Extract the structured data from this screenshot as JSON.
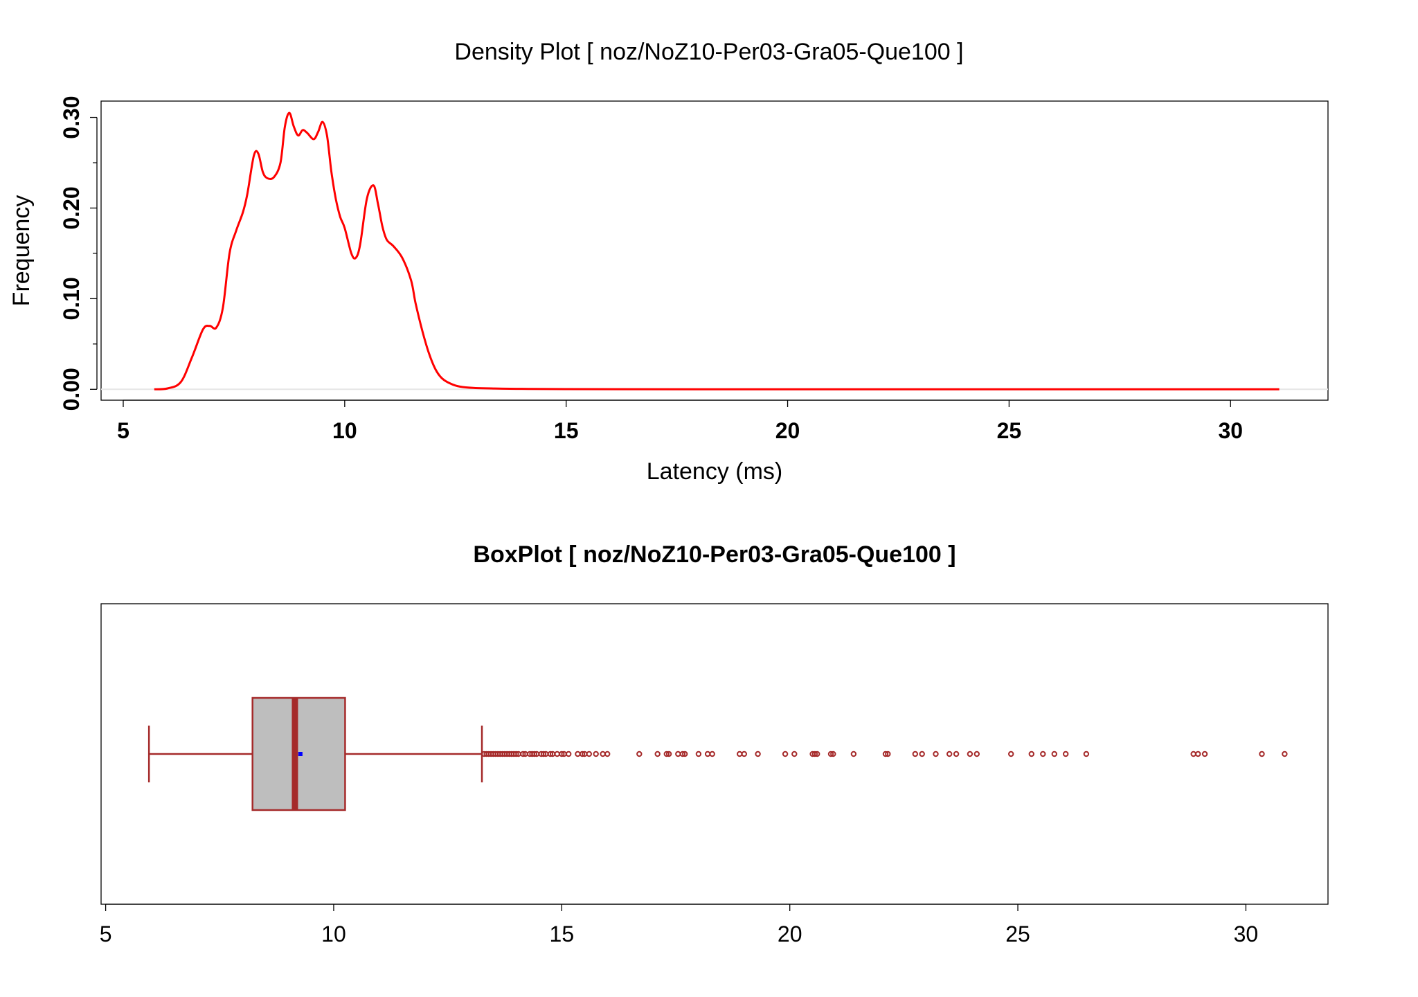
{
  "colors": {
    "density_line": "#ff0000",
    "box_fill": "#bebebe",
    "box_stroke": "#a52a2a",
    "mean_marker": "#0000ff",
    "frame": "#000000",
    "grid": "#e6e6e6"
  },
  "chart_data": [
    {
      "type": "line",
      "title": "Density Plot [ noz/NoZ10-Per03-Gra05-Que100 ]",
      "xlabel": "Latency (ms)",
      "ylabel": "Frequency",
      "xlim": [
        4.5,
        32.2
      ],
      "ylim": [
        -0.012,
        0.318
      ],
      "x_ticks": [
        5,
        10,
        15,
        20,
        25,
        30
      ],
      "x_tick_labels": [
        "5",
        "10",
        "15",
        "20",
        "25",
        "30"
      ],
      "y_ticks": [
        0.0,
        0.1,
        0.2,
        0.3
      ],
      "y_tick_labels": [
        "0.00",
        "0.10",
        "0.20",
        "0.30"
      ],
      "y_minor_ticks": [
        0.05,
        0.15,
        0.25
      ],
      "grid": "horizontal line at 0.00",
      "series": [
        {
          "x": [
            5.7,
            6.0,
            6.3,
            6.55,
            6.8,
            6.95,
            7.1,
            7.25,
            7.4,
            7.55,
            7.7,
            7.8,
            7.95,
            8.05,
            8.15,
            8.25,
            8.4,
            8.55,
            8.65,
            8.75,
            8.85,
            8.95,
            9.05,
            9.15,
            9.3,
            9.4,
            9.5,
            9.6,
            9.7,
            9.8,
            9.9,
            10.0,
            10.15,
            10.25,
            10.35,
            10.5,
            10.65,
            10.75,
            10.85,
            10.95,
            11.1,
            11.3,
            11.5,
            11.6,
            11.75,
            11.9,
            12.05,
            12.2,
            12.4,
            12.6,
            12.9,
            13.3,
            14.0,
            15.0,
            18.0,
            22.0,
            26.0,
            31.1
          ],
          "y": [
            0.0,
            0.001,
            0.008,
            0.035,
            0.066,
            0.07,
            0.068,
            0.09,
            0.15,
            0.175,
            0.195,
            0.215,
            0.258,
            0.26,
            0.24,
            0.233,
            0.234,
            0.25,
            0.29,
            0.305,
            0.29,
            0.28,
            0.286,
            0.283,
            0.276,
            0.284,
            0.295,
            0.28,
            0.24,
            0.21,
            0.19,
            0.178,
            0.15,
            0.145,
            0.16,
            0.21,
            0.225,
            0.205,
            0.18,
            0.165,
            0.158,
            0.145,
            0.12,
            0.095,
            0.065,
            0.04,
            0.022,
            0.012,
            0.006,
            0.003,
            0.0015,
            0.001,
            0.0005,
            0.0002,
            0.0001,
            0.0,
            0.0,
            0.0
          ]
        }
      ]
    },
    {
      "type": "box",
      "title": "BoxPlot [ noz/NoZ10-Per03-Gra05-Que100 ]",
      "xlim": [
        4.9,
        31.8
      ],
      "x_ticks": [
        5,
        10,
        15,
        20,
        25,
        30
      ],
      "x_tick_labels": [
        "5",
        "10",
        "15",
        "20",
        "25",
        "30"
      ],
      "orientation": "horizontal",
      "whisker_low": 5.95,
      "q1": 8.22,
      "median": 9.15,
      "q3": 10.25,
      "whisker_high": 13.25,
      "mean": 9.27,
      "outliers": [
        13.3,
        13.35,
        13.4,
        13.45,
        13.5,
        13.55,
        13.6,
        13.65,
        13.7,
        13.75,
        13.8,
        13.85,
        13.9,
        13.95,
        14.0,
        14.05,
        14.15,
        14.2,
        14.3,
        14.35,
        14.4,
        14.45,
        14.55,
        14.6,
        14.65,
        14.75,
        14.8,
        14.9,
        15.0,
        15.05,
        15.15,
        15.35,
        15.45,
        15.5,
        15.6,
        15.75,
        15.9,
        16.0,
        16.7,
        17.1,
        17.3,
        17.35,
        17.55,
        17.65,
        17.7,
        18.0,
        18.2,
        18.3,
        18.9,
        19.0,
        19.3,
        19.9,
        20.1,
        20.5,
        20.55,
        20.6,
        20.9,
        20.95,
        21.4,
        22.1,
        22.15,
        22.75,
        22.9,
        23.2,
        23.5,
        23.65,
        23.95,
        24.1,
        24.85,
        25.3,
        25.55,
        25.8,
        26.05,
        26.5,
        28.85,
        28.95,
        29.1,
        30.35,
        30.85
      ]
    }
  ]
}
